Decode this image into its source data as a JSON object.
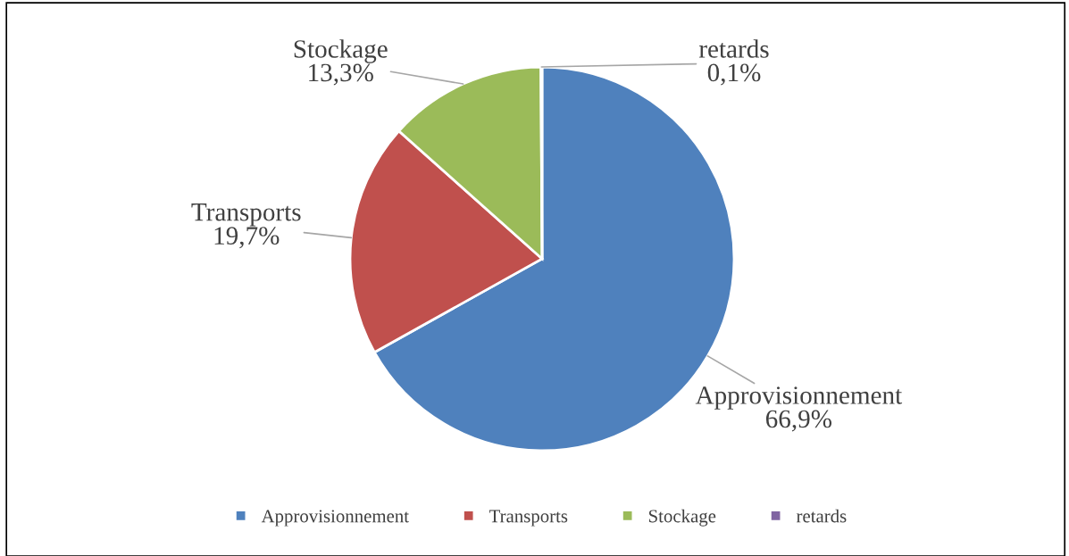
{
  "chart_data": {
    "type": "pie",
    "categories": [
      "Approvisionnement",
      "Transports",
      "Stockage",
      "retards"
    ],
    "values": [
      66.9,
      19.7,
      13.3,
      0.1
    ],
    "value_labels": [
      "66,9%",
      "19,7%",
      "13,3%",
      "0,1%"
    ],
    "colors": [
      "#4f81bd",
      "#c0504d",
      "#9bbb59",
      "#8064a2"
    ],
    "legend": "bottom"
  }
}
